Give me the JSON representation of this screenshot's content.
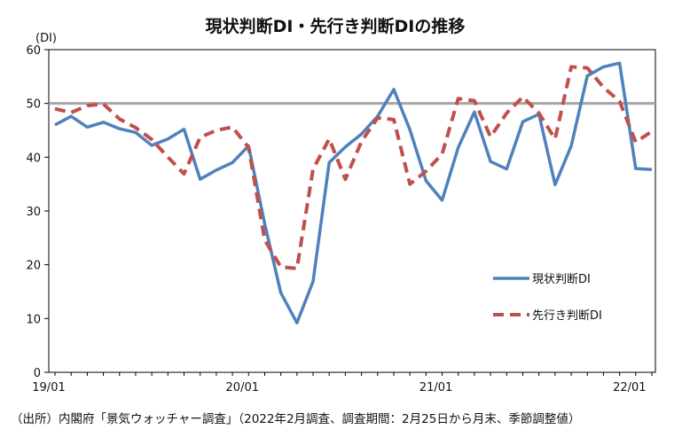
{
  "source_note": "（出所）内閣府「景気ウォッチャー調査」（2022年2月調査、調査期間：2月25日から月末、季節調整値）",
  "chart_data": {
    "type": "line",
    "title": "現状判断DI・先行き判断DIの推移",
    "ylabel": "(DI)",
    "xlabel": "",
    "ylim": [
      0,
      60
    ],
    "yticks": [
      0,
      10,
      20,
      30,
      40,
      50,
      60
    ],
    "xtick_labels": [
      {
        "index": 0,
        "label": "19/01"
      },
      {
        "index": 12,
        "label": "20/01"
      },
      {
        "index": 24,
        "label": "21/01"
      },
      {
        "index": 36,
        "label": "22/01"
      }
    ],
    "reference_line": 50,
    "grid": false,
    "legend_position": "right-middle",
    "series": [
      {
        "name": "現状判断DI",
        "color": "#4F81BD",
        "style": "solid",
        "values": [
          46.0,
          47.6,
          45.6,
          46.5,
          45.3,
          44.6,
          42.2,
          43.4,
          45.2,
          35.9,
          37.6,
          39.0,
          42.1,
          27.6,
          14.8,
          9.2,
          16.9,
          39.0,
          41.9,
          44.3,
          47.6,
          52.6,
          45.1,
          35.6,
          32.0,
          41.8,
          48.4,
          39.2,
          37.8,
          46.6,
          48.0,
          34.9,
          42.1,
          55.1,
          56.8,
          57.5,
          37.9,
          37.7
        ]
      },
      {
        "name": "先行き判断DI",
        "color": "#C0504D",
        "style": "dashed",
        "values": [
          49.0,
          48.3,
          49.6,
          49.9,
          47.1,
          45.5,
          43.3,
          40.0,
          36.9,
          43.7,
          45.0,
          45.6,
          41.8,
          24.6,
          19.6,
          19.3,
          37.8,
          43.4,
          35.9,
          42.9,
          47.3,
          47.0,
          35.0,
          37.4,
          40.6,
          50.9,
          50.5,
          43.8,
          48.2,
          51.2,
          48.2,
          43.4,
          56.8,
          56.6,
          53.0,
          50.4,
          42.8,
          44.8
        ]
      }
    ]
  }
}
